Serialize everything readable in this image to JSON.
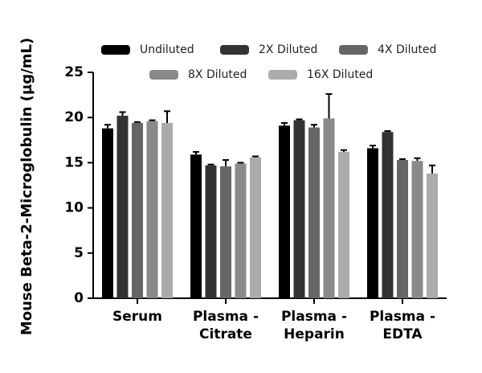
{
  "chart_data": {
    "type": "bar",
    "y_label": "Mouse Beta-2-Microglobulin (µg/mL)",
    "categories": [
      "Serum",
      "Plasma - Citrate",
      "Plasma - Heparin",
      "Plasma - EDTA"
    ],
    "series": [
      {
        "name": "Undiluted",
        "color": "#000000",
        "values": [
          18.8,
          15.9,
          19.1,
          16.6
        ],
        "errors": [
          0.4,
          0.3,
          0.3,
          0.3
        ]
      },
      {
        "name": "2X Diluted",
        "color": "#333333",
        "values": [
          20.2,
          14.7,
          19.7,
          18.4
        ],
        "errors": [
          0.4,
          0.1,
          0.1,
          0.1
        ]
      },
      {
        "name": "4X Diluted",
        "color": "#666666",
        "values": [
          19.4,
          14.6,
          18.9,
          15.3
        ],
        "errors": [
          0.1,
          0.7,
          0.3,
          0.1
        ]
      },
      {
        "name": "8X Diluted",
        "color": "#8a8a8a",
        "values": [
          19.6,
          14.9,
          19.9,
          15.2
        ],
        "errors": [
          0.1,
          0.1,
          2.7,
          0.3
        ]
      },
      {
        "name": "16X Diluted",
        "color": "#ababab",
        "values": [
          19.4,
          15.6,
          16.2,
          13.8
        ],
        "errors": [
          1.3,
          0.1,
          0.2,
          0.9
        ]
      }
    ],
    "ylim": [
      0,
      25
    ],
    "yticks": [
      0,
      5,
      10,
      15,
      20,
      25
    ]
  }
}
